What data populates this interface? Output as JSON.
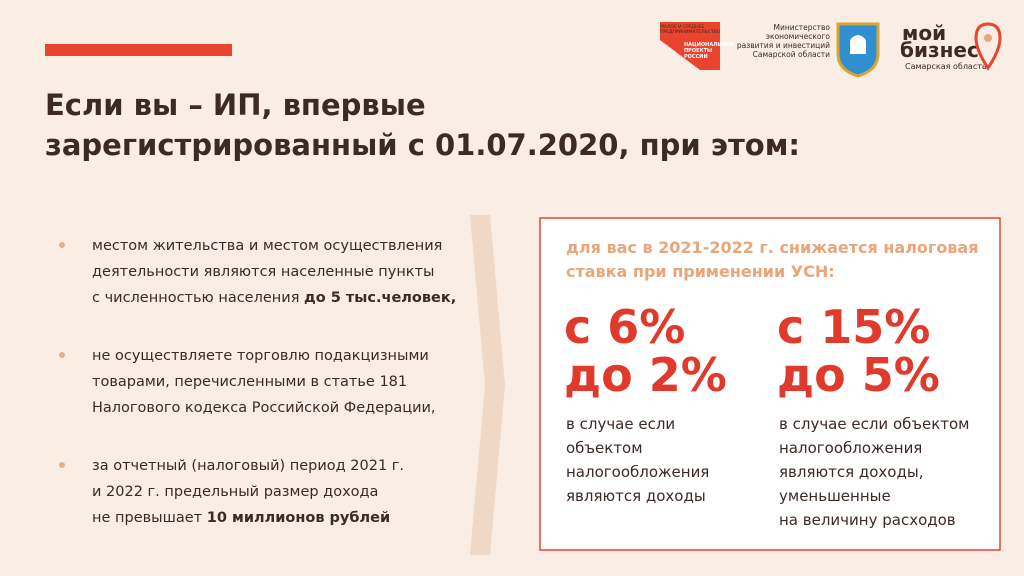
{
  "header": {
    "logo_np": {
      "line1": "МАЛОЕ И СРЕДНЕЕ",
      "line2": "ПРЕДПРИНИМАТЕЛЬСТВО",
      "line3": "НАЦИОНАЛЬНЫЕ",
      "line4": "ПРОЕКТЫ",
      "line5": "РОССИИ"
    },
    "ministry": [
      "Министерство",
      "экономического",
      "развития и инвестиций",
      "Самарской области"
    ],
    "brand": {
      "line1": "мой",
      "line2": "бизнес",
      "region": "Самарская область"
    },
    "title": [
      "Если вы – ИП, впервые",
      "зарегистрированный с 01.07.2020, при этом:"
    ]
  },
  "bullets": [
    {
      "lines": [
        "местом жительства и местом осуществления",
        "деятельности являются населенные пункты",
        "с численностью населения "
      ],
      "bold": "до 5 тыс.человек,"
    },
    {
      "lines": [
        "не осуществляете торговлю подакцизными",
        "товарами, перечисленными в статье 181",
        "Налогового кодекса Российской Федерации,"
      ]
    },
    {
      "lines": [
        "за отчетный (налоговый) период 2021 г.",
        " и 2022 г. предельный размер дохода",
        "не превышает "
      ],
      "bold": "10 миллионов рублей"
    }
  ],
  "box": {
    "heading": [
      "для вас в 2021-2022 г. снижается налоговая",
      "ставка при применении УСН:"
    ],
    "columns": [
      {
        "rate": [
          "с 6%",
          "до 2%"
        ],
        "note": [
          "в случае если",
          "объектом",
          "налогообложения",
          "являются доходы"
        ]
      },
      {
        "rate": [
          "с 15%",
          "до 5%"
        ],
        "note": [
          "в случае если объектом",
          "налогообложения",
          "являются доходы,",
          "уменьшенные",
          "на величину расходов"
        ]
      }
    ]
  }
}
